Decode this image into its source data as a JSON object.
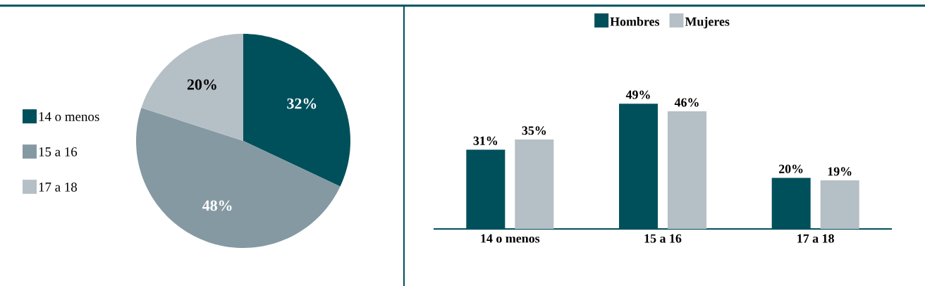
{
  "chart_data": [
    {
      "type": "pie",
      "categories": [
        "14 o menos",
        "15 a 16",
        "17 a 18"
      ],
      "values": [
        32,
        48,
        20
      ],
      "colors": [
        "#00505c",
        "#8599a3",
        "#b5bfc6"
      ],
      "value_labels": [
        "32%",
        "48%",
        "20%"
      ],
      "legend": "left"
    },
    {
      "type": "bar",
      "categories": [
        "14 o menos",
        "15 a 16",
        "17 a 18"
      ],
      "legend": "top",
      "series": [
        {
          "name": "Hombres",
          "color": "#00505c",
          "values": [
            31,
            49,
            20
          ],
          "value_labels": [
            "31%",
            "49%",
            "20%"
          ]
        },
        {
          "name": "Mujeres",
          "color": "#b5bfc6",
          "values": [
            35,
            46,
            19
          ],
          "value_labels": [
            "35%",
            "46%",
            "19%"
          ]
        }
      ]
    }
  ]
}
